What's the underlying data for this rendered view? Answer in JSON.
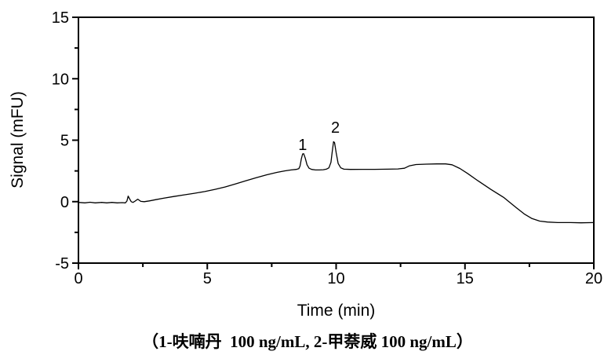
{
  "figure": {
    "background": "#ffffff",
    "frame_color": "#000000"
  },
  "chart_data": {
    "type": "line",
    "title": "",
    "xlabel": "Time (min)",
    "ylabel": "Signal (mFU)",
    "xlim": [
      0,
      20
    ],
    "ylim": [
      -5,
      15
    ],
    "x_major_ticks": [
      0,
      5,
      10,
      15,
      20
    ],
    "x_major_tick_labels": [
      "0",
      "5",
      "10",
      "15",
      "20"
    ],
    "x_minor_ticks": [
      2.5,
      7.5,
      12.5,
      17.5
    ],
    "y_major_ticks": [
      -5,
      0,
      5,
      10,
      15
    ],
    "y_major_tick_labels": [
      "-5",
      "0",
      "5",
      "10",
      "15"
    ],
    "y_minor_ticks": [
      -2.5,
      2.5,
      7.5,
      12.5
    ],
    "grid": false,
    "legend": false,
    "series": [
      {
        "name": "chromatogram",
        "color": "#000000",
        "points": [
          [
            0,
            -0.06
          ],
          [
            0.25,
            -0.1
          ],
          [
            0.45,
            -0.05
          ],
          [
            0.65,
            -0.1
          ],
          [
            0.9,
            -0.06
          ],
          [
            1.1,
            -0.1
          ],
          [
            1.3,
            -0.06
          ],
          [
            1.5,
            -0.1
          ],
          [
            1.7,
            -0.08
          ],
          [
            1.82,
            -0.1
          ],
          [
            1.88,
            0.05
          ],
          [
            1.93,
            0.45
          ],
          [
            1.98,
            0.25
          ],
          [
            2.05,
            0.0
          ],
          [
            2.12,
            -0.06
          ],
          [
            2.2,
            0.05
          ],
          [
            2.3,
            0.2
          ],
          [
            2.42,
            0.02
          ],
          [
            2.55,
            0.0
          ],
          [
            2.75,
            0.06
          ],
          [
            3.0,
            0.16
          ],
          [
            3.3,
            0.28
          ],
          [
            3.7,
            0.42
          ],
          [
            4.1,
            0.55
          ],
          [
            4.5,
            0.68
          ],
          [
            4.9,
            0.82
          ],
          [
            5.3,
            1.0
          ],
          [
            5.7,
            1.2
          ],
          [
            6.1,
            1.45
          ],
          [
            6.5,
            1.7
          ],
          [
            6.9,
            1.95
          ],
          [
            7.3,
            2.18
          ],
          [
            7.7,
            2.38
          ],
          [
            8.0,
            2.5
          ],
          [
            8.25,
            2.58
          ],
          [
            8.45,
            2.62
          ],
          [
            8.55,
            2.68
          ],
          [
            8.6,
            2.9
          ],
          [
            8.65,
            3.5
          ],
          [
            8.7,
            3.88
          ],
          [
            8.74,
            3.9
          ],
          [
            8.8,
            3.55
          ],
          [
            8.87,
            3.0
          ],
          [
            8.95,
            2.72
          ],
          [
            9.05,
            2.62
          ],
          [
            9.2,
            2.58
          ],
          [
            9.35,
            2.58
          ],
          [
            9.5,
            2.6
          ],
          [
            9.62,
            2.64
          ],
          [
            9.72,
            2.75
          ],
          [
            9.8,
            3.2
          ],
          [
            9.85,
            4.1
          ],
          [
            9.9,
            4.88
          ],
          [
            9.94,
            4.8
          ],
          [
            10.0,
            4.0
          ],
          [
            10.08,
            3.1
          ],
          [
            10.18,
            2.75
          ],
          [
            10.3,
            2.64
          ],
          [
            10.55,
            2.62
          ],
          [
            11.0,
            2.63
          ],
          [
            11.5,
            2.63
          ],
          [
            12.0,
            2.64
          ],
          [
            12.4,
            2.66
          ],
          [
            12.65,
            2.72
          ],
          [
            12.85,
            2.92
          ],
          [
            13.1,
            3.02
          ],
          [
            13.5,
            3.05
          ],
          [
            13.9,
            3.07
          ],
          [
            14.25,
            3.07
          ],
          [
            14.5,
            3.0
          ],
          [
            14.8,
            2.7
          ],
          [
            15.1,
            2.3
          ],
          [
            15.5,
            1.7
          ],
          [
            16.0,
            1.0
          ],
          [
            16.5,
            0.35
          ],
          [
            17.0,
            -0.5
          ],
          [
            17.3,
            -1.0
          ],
          [
            17.6,
            -1.38
          ],
          [
            17.9,
            -1.58
          ],
          [
            18.2,
            -1.66
          ],
          [
            18.6,
            -1.7
          ],
          [
            19.1,
            -1.7
          ],
          [
            19.5,
            -1.72
          ],
          [
            20.0,
            -1.7
          ]
        ]
      }
    ],
    "annotations": [
      {
        "label": "1",
        "x": 8.7,
        "y": 4.2
      },
      {
        "label": "2",
        "x": 9.97,
        "y": 5.6
      }
    ]
  },
  "caption": {
    "text": "（1-呋喃丹  100 ng/mL, 2-甲萘威 100 ng/mL）"
  }
}
